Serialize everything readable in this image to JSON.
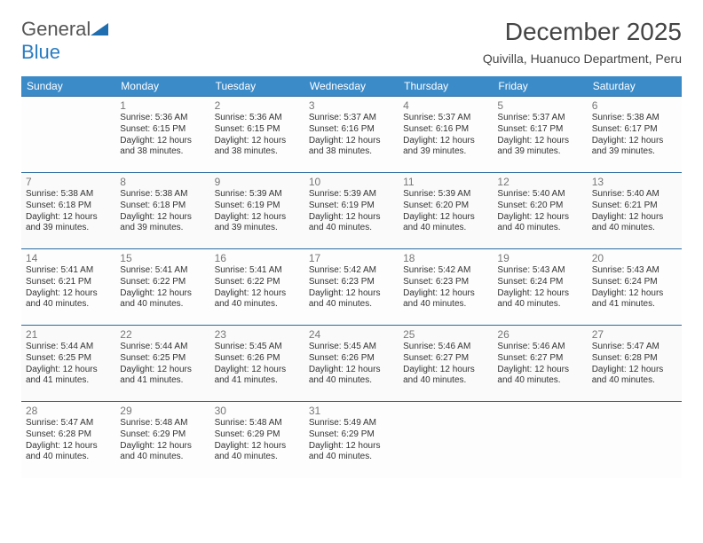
{
  "logo": {
    "word1": "General",
    "word2": "Blue"
  },
  "title": "December 2025",
  "location": "Quivilla, Huanuco Department, Peru",
  "colors": {
    "header_bg": "#3b8bc9",
    "header_text": "#ffffff",
    "rule": "#2a6aa0",
    "daynum": "#777777",
    "body_text": "#333333",
    "logo_gray": "#555555",
    "logo_blue": "#2a7dc1"
  },
  "day_headers": [
    "Sunday",
    "Monday",
    "Tuesday",
    "Wednesday",
    "Thursday",
    "Friday",
    "Saturday"
  ],
  "weeks": [
    [
      null,
      {
        "n": "1",
        "sr": "Sunrise: 5:36 AM",
        "ss": "Sunset: 6:15 PM",
        "dl": "Daylight: 12 hours and 38 minutes."
      },
      {
        "n": "2",
        "sr": "Sunrise: 5:36 AM",
        "ss": "Sunset: 6:15 PM",
        "dl": "Daylight: 12 hours and 38 minutes."
      },
      {
        "n": "3",
        "sr": "Sunrise: 5:37 AM",
        "ss": "Sunset: 6:16 PM",
        "dl": "Daylight: 12 hours and 38 minutes."
      },
      {
        "n": "4",
        "sr": "Sunrise: 5:37 AM",
        "ss": "Sunset: 6:16 PM",
        "dl": "Daylight: 12 hours and 39 minutes."
      },
      {
        "n": "5",
        "sr": "Sunrise: 5:37 AM",
        "ss": "Sunset: 6:17 PM",
        "dl": "Daylight: 12 hours and 39 minutes."
      },
      {
        "n": "6",
        "sr": "Sunrise: 5:38 AM",
        "ss": "Sunset: 6:17 PM",
        "dl": "Daylight: 12 hours and 39 minutes."
      }
    ],
    [
      {
        "n": "7",
        "sr": "Sunrise: 5:38 AM",
        "ss": "Sunset: 6:18 PM",
        "dl": "Daylight: 12 hours and 39 minutes."
      },
      {
        "n": "8",
        "sr": "Sunrise: 5:38 AM",
        "ss": "Sunset: 6:18 PM",
        "dl": "Daylight: 12 hours and 39 minutes."
      },
      {
        "n": "9",
        "sr": "Sunrise: 5:39 AM",
        "ss": "Sunset: 6:19 PM",
        "dl": "Daylight: 12 hours and 39 minutes."
      },
      {
        "n": "10",
        "sr": "Sunrise: 5:39 AM",
        "ss": "Sunset: 6:19 PM",
        "dl": "Daylight: 12 hours and 40 minutes."
      },
      {
        "n": "11",
        "sr": "Sunrise: 5:39 AM",
        "ss": "Sunset: 6:20 PM",
        "dl": "Daylight: 12 hours and 40 minutes."
      },
      {
        "n": "12",
        "sr": "Sunrise: 5:40 AM",
        "ss": "Sunset: 6:20 PM",
        "dl": "Daylight: 12 hours and 40 minutes."
      },
      {
        "n": "13",
        "sr": "Sunrise: 5:40 AM",
        "ss": "Sunset: 6:21 PM",
        "dl": "Daylight: 12 hours and 40 minutes."
      }
    ],
    [
      {
        "n": "14",
        "sr": "Sunrise: 5:41 AM",
        "ss": "Sunset: 6:21 PM",
        "dl": "Daylight: 12 hours and 40 minutes."
      },
      {
        "n": "15",
        "sr": "Sunrise: 5:41 AM",
        "ss": "Sunset: 6:22 PM",
        "dl": "Daylight: 12 hours and 40 minutes."
      },
      {
        "n": "16",
        "sr": "Sunrise: 5:41 AM",
        "ss": "Sunset: 6:22 PM",
        "dl": "Daylight: 12 hours and 40 minutes."
      },
      {
        "n": "17",
        "sr": "Sunrise: 5:42 AM",
        "ss": "Sunset: 6:23 PM",
        "dl": "Daylight: 12 hours and 40 minutes."
      },
      {
        "n": "18",
        "sr": "Sunrise: 5:42 AM",
        "ss": "Sunset: 6:23 PM",
        "dl": "Daylight: 12 hours and 40 minutes."
      },
      {
        "n": "19",
        "sr": "Sunrise: 5:43 AM",
        "ss": "Sunset: 6:24 PM",
        "dl": "Daylight: 12 hours and 40 minutes."
      },
      {
        "n": "20",
        "sr": "Sunrise: 5:43 AM",
        "ss": "Sunset: 6:24 PM",
        "dl": "Daylight: 12 hours and 41 minutes."
      }
    ],
    [
      {
        "n": "21",
        "sr": "Sunrise: 5:44 AM",
        "ss": "Sunset: 6:25 PM",
        "dl": "Daylight: 12 hours and 41 minutes."
      },
      {
        "n": "22",
        "sr": "Sunrise: 5:44 AM",
        "ss": "Sunset: 6:25 PM",
        "dl": "Daylight: 12 hours and 41 minutes."
      },
      {
        "n": "23",
        "sr": "Sunrise: 5:45 AM",
        "ss": "Sunset: 6:26 PM",
        "dl": "Daylight: 12 hours and 41 minutes."
      },
      {
        "n": "24",
        "sr": "Sunrise: 5:45 AM",
        "ss": "Sunset: 6:26 PM",
        "dl": "Daylight: 12 hours and 40 minutes."
      },
      {
        "n": "25",
        "sr": "Sunrise: 5:46 AM",
        "ss": "Sunset: 6:27 PM",
        "dl": "Daylight: 12 hours and 40 minutes."
      },
      {
        "n": "26",
        "sr": "Sunrise: 5:46 AM",
        "ss": "Sunset: 6:27 PM",
        "dl": "Daylight: 12 hours and 40 minutes."
      },
      {
        "n": "27",
        "sr": "Sunrise: 5:47 AM",
        "ss": "Sunset: 6:28 PM",
        "dl": "Daylight: 12 hours and 40 minutes."
      }
    ],
    [
      {
        "n": "28",
        "sr": "Sunrise: 5:47 AM",
        "ss": "Sunset: 6:28 PM",
        "dl": "Daylight: 12 hours and 40 minutes."
      },
      {
        "n": "29",
        "sr": "Sunrise: 5:48 AM",
        "ss": "Sunset: 6:29 PM",
        "dl": "Daylight: 12 hours and 40 minutes."
      },
      {
        "n": "30",
        "sr": "Sunrise: 5:48 AM",
        "ss": "Sunset: 6:29 PM",
        "dl": "Daylight: 12 hours and 40 minutes."
      },
      {
        "n": "31",
        "sr": "Sunrise: 5:49 AM",
        "ss": "Sunset: 6:29 PM",
        "dl": "Daylight: 12 hours and 40 minutes."
      },
      null,
      null,
      null
    ]
  ]
}
